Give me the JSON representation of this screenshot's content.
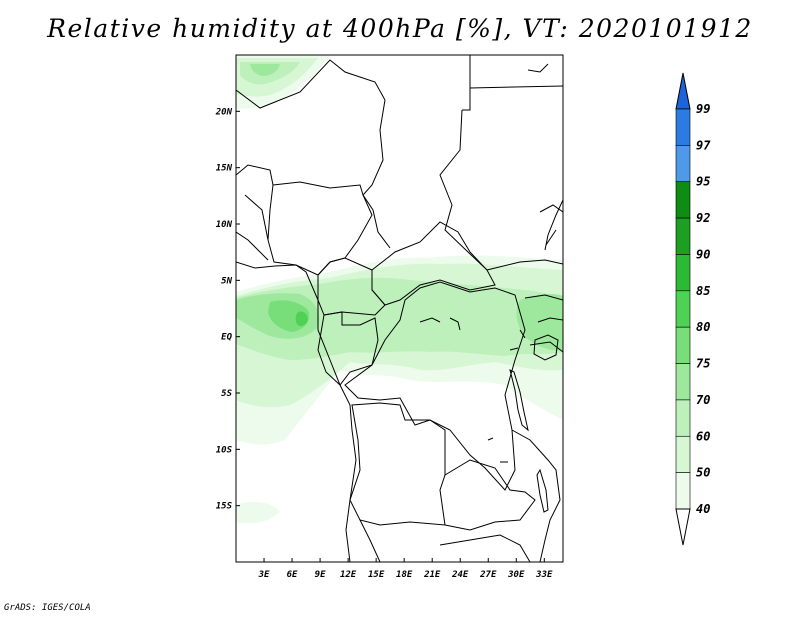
{
  "title": "Relative humidity at 400hPa [%], VT: 2020101912",
  "credit": "GrADS: IGES/COLA",
  "map": {
    "variable": "Relative humidity",
    "level": "400hPa",
    "units": "%",
    "valid_time": "2020101912",
    "lon_range": [
      0,
      35
    ],
    "lat_range": [
      -20,
      25
    ],
    "x_ticks": [
      "3E",
      "6E",
      "9E",
      "12E",
      "15E",
      "18E",
      "21E",
      "24E",
      "27E",
      "30E",
      "33E"
    ],
    "y_ticks": [
      "20N",
      "15N",
      "10N",
      "5N",
      "EQ",
      "5S",
      "10S",
      "15S"
    ]
  },
  "colorbar": {
    "levels": [
      "99",
      "97",
      "95",
      "92",
      "90",
      "85",
      "80",
      "75",
      "70",
      "60",
      "50",
      "40"
    ],
    "colors": [
      "#1e64d8",
      "#2b7be0",
      "#4f9ae8",
      "#0f8c13",
      "#1e9e22",
      "#2db934",
      "#4fd156",
      "#78de7a",
      "#9de89d",
      "#bdf0bb",
      "#d6f6d4",
      "#edfbec"
    ]
  }
}
